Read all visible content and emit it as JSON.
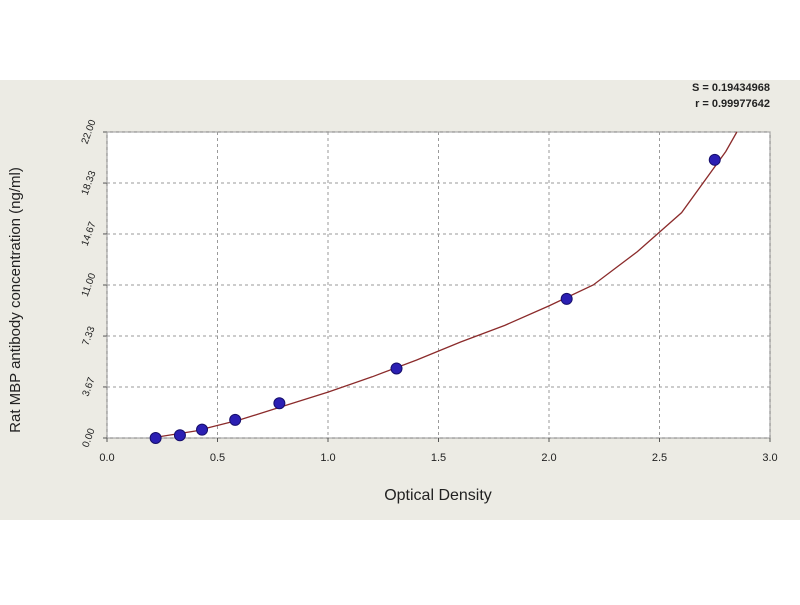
{
  "chart_data": {
    "type": "scatter",
    "annotations": [
      "S = 0.19434968",
      "r = 0.99977642"
    ],
    "xlabel": "Optical Density",
    "ylabel": "Rat MBP antibody concentration (ng/ml)",
    "x": [
      0.22,
      0.33,
      0.43,
      0.58,
      0.78,
      1.31,
      2.08,
      2.75
    ],
    "values": [
      0.0,
      0.2,
      0.6,
      1.3,
      2.5,
      5.0,
      10.0,
      20.0
    ],
    "color": "#2b1fb3",
    "curve": {
      "color": "#8b2b2b",
      "x": [
        0.2,
        0.4,
        0.6,
        0.8,
        1.0,
        1.2,
        1.4,
        1.6,
        1.8,
        2.0,
        2.2,
        2.4,
        2.6,
        2.8,
        2.85
      ],
      "y": [
        0.0,
        0.5,
        1.3,
        2.3,
        3.3,
        4.4,
        5.6,
        6.9,
        8.1,
        9.5,
        11.0,
        13.4,
        16.2,
        20.6,
        22.0
      ]
    },
    "xlim": [
      0,
      3
    ],
    "xticks": [
      {
        "value": 0,
        "label": "0.0"
      },
      {
        "value": 0.5,
        "label": "0.5"
      },
      {
        "value": 1,
        "label": "1.0"
      },
      {
        "value": 1.5,
        "label": "1.5"
      },
      {
        "value": 2,
        "label": "2.0"
      },
      {
        "value": 2.5,
        "label": "2.5"
      },
      {
        "value": 3,
        "label": "3.0"
      }
    ],
    "ylim": [
      0,
      22
    ],
    "yticks": [
      {
        "value": 0,
        "label": "0.00"
      },
      {
        "value": 3.67,
        "label": "3.67"
      },
      {
        "value": 7.33,
        "label": "7.33"
      },
      {
        "value": 11,
        "label": "11.00"
      },
      {
        "value": 14.67,
        "label": "14.67"
      },
      {
        "value": 18.33,
        "label": "18.33"
      },
      {
        "value": 22,
        "label": "22.00"
      }
    ],
    "grid": true
  }
}
